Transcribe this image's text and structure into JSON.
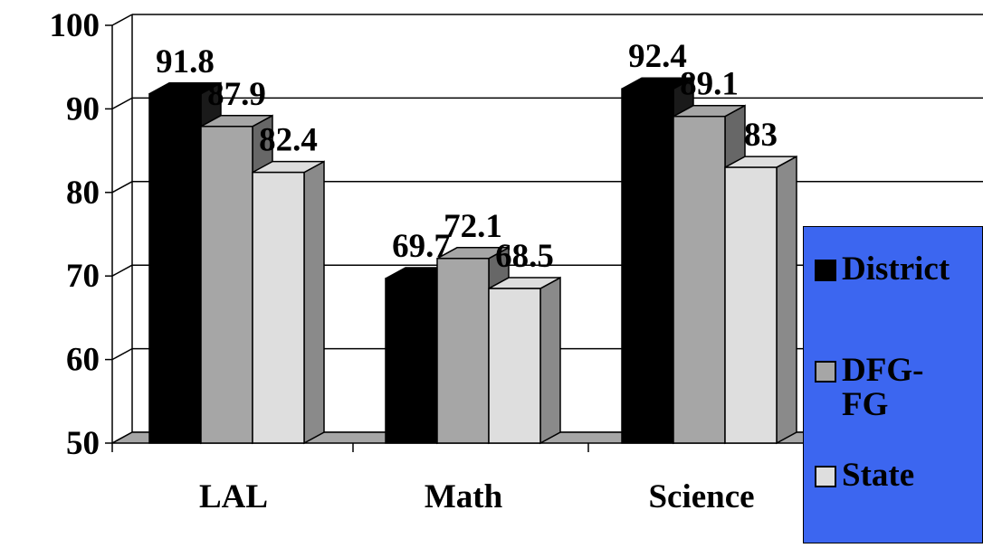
{
  "chart_data": {
    "type": "bar",
    "categories": [
      "LAL",
      "Math",
      "Science"
    ],
    "series": [
      {
        "name": "District",
        "values": [
          91.8,
          69.7,
          92.4
        ],
        "color": "#000000"
      },
      {
        "name": "DFG-FG",
        "values": [
          87.9,
          72.1,
          89.1
        ],
        "color": "#a6a6a6"
      },
      {
        "name": "State",
        "values": [
          82.4,
          68.5,
          83
        ],
        "color": "#dedede"
      }
    ],
    "value_labels": [
      [
        "91.8",
        "69.7",
        "92.4"
      ],
      [
        "87.9",
        "72.1",
        "89.1"
      ],
      [
        "82.4",
        "68.5",
        "83"
      ]
    ],
    "title": "",
    "xlabel": "",
    "ylabel": "",
    "ylim": [
      50,
      100
    ],
    "yticks": [
      50,
      60,
      70,
      80,
      90,
      100
    ],
    "ytick_labels": [
      "50",
      "60",
      "70",
      "80",
      "90",
      "100"
    ],
    "grid": true,
    "three_d": true,
    "legend_position": "right",
    "legend_background": "#3c66f0",
    "legend_entries": [
      "District",
      "DFG-FG",
      "State"
    ]
  }
}
